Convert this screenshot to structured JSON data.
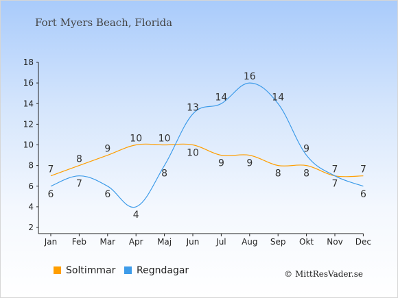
{
  "chart_data": {
    "type": "line",
    "title": "Fort Myers Beach, Florida",
    "categories": [
      "Jan",
      "Feb",
      "Mar",
      "Apr",
      "Maj",
      "Jun",
      "Jul",
      "Aug",
      "Sep",
      "Okt",
      "Nov",
      "Dec"
    ],
    "ylim": [
      2,
      18
    ],
    "yticks": [
      2,
      4,
      6,
      8,
      10,
      12,
      14,
      16,
      18
    ],
    "grid": false,
    "legend_position": "bottom-left",
    "series": [
      {
        "name": "Soltimmar",
        "color": "#ff9e00",
        "values": [
          7,
          8,
          9,
          10,
          10,
          10,
          9,
          9,
          8,
          8,
          7,
          7
        ]
      },
      {
        "name": "Regndagar",
        "color": "#3d9be9",
        "values": [
          6,
          7,
          6,
          4,
          8,
          13,
          14,
          16,
          14,
          9,
          7,
          6
        ]
      }
    ]
  },
  "credit": "© MittResVader.se"
}
